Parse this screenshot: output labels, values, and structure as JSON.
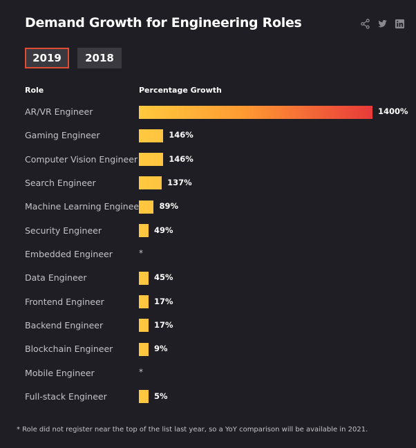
{
  "title": "Demand Growth for Engineering Roles",
  "share_icons": [
    "share-icon",
    "twitter-icon",
    "linkedin-icon"
  ],
  "tabs": [
    {
      "label": "2019",
      "active": true
    },
    {
      "label": "2018",
      "active": false
    }
  ],
  "colors": {
    "bar_start": "#ffc93e",
    "bar_end": "#e83a3a",
    "tab_border": "#e14b32"
  },
  "chart_data": {
    "type": "bar",
    "orientation": "horizontal",
    "title": "Demand Growth for Engineering Roles",
    "column_headers": {
      "role": "Role",
      "growth": "Percentage Growth"
    },
    "categories": [
      "AR/VR Engineer",
      "Gaming Engineer",
      "Computer Vision Engineer",
      "Search Engineer",
      "Machine Learning Engineer",
      "Security Engineer",
      "Embedded Engineer",
      "Data Engineer",
      "Frontend Engineer",
      "Backend Engineer",
      "Blockchain Engineer",
      "Mobile Engineer",
      "Full-stack Engineer"
    ],
    "values": [
      1400,
      146,
      146,
      137,
      89,
      49,
      null,
      45,
      17,
      17,
      9,
      null,
      5
    ],
    "labels": [
      "1400%",
      "146%",
      "146%",
      "137%",
      "89%",
      "49%",
      "*",
      "45%",
      "17%",
      "17%",
      "9%",
      "*",
      "5%"
    ],
    "unit": "%"
  },
  "footnote": "* Role did not register near the top of the list last year, so a YoY comparison will be available in 2021."
}
